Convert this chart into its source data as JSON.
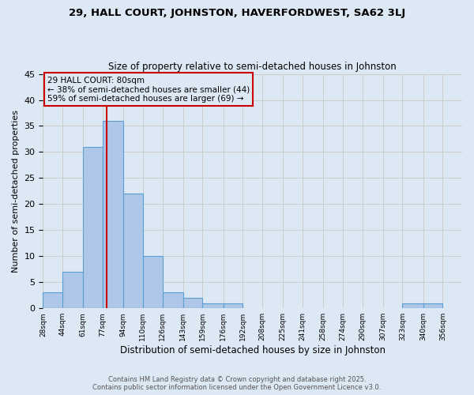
{
  "title1": "29, HALL COURT, JOHNSTON, HAVERFORDWEST, SA62 3LJ",
  "title2": "Size of property relative to semi-detached houses in Johnston",
  "xlabel": "Distribution of semi-detached houses by size in Johnston",
  "ylabel": "Number of semi-detached properties",
  "property_size": 80,
  "annotation_title": "29 HALL COURT: 80sqm",
  "annotation_line1": "← 38% of semi-detached houses are smaller (44)",
  "annotation_line2": "59% of semi-detached houses are larger (69) →",
  "footer1": "Contains HM Land Registry data © Crown copyright and database right 2025.",
  "footer2": "Contains public sector information licensed under the Open Government Licence v3.0.",
  "bin_edges": [
    28,
    44,
    61,
    77,
    94,
    110,
    126,
    143,
    159,
    176,
    192,
    208,
    225,
    241,
    258,
    274,
    290,
    307,
    323,
    340,
    356,
    372
  ],
  "counts": [
    3,
    7,
    31,
    36,
    22,
    10,
    3,
    2,
    1,
    1,
    0,
    0,
    0,
    0,
    0,
    0,
    0,
    0,
    1,
    1,
    0
  ],
  "bar_color": "#aec6e8",
  "bar_edge_color": "#5a9fd4",
  "red_line_color": "#cc0000",
  "annotation_box_color": "#cc0000",
  "grid_color": "#cccccc",
  "background_color": "#dde8f5",
  "ylim": [
    0,
    45
  ],
  "yticks": [
    0,
    5,
    10,
    15,
    20,
    25,
    30,
    35,
    40,
    45
  ]
}
